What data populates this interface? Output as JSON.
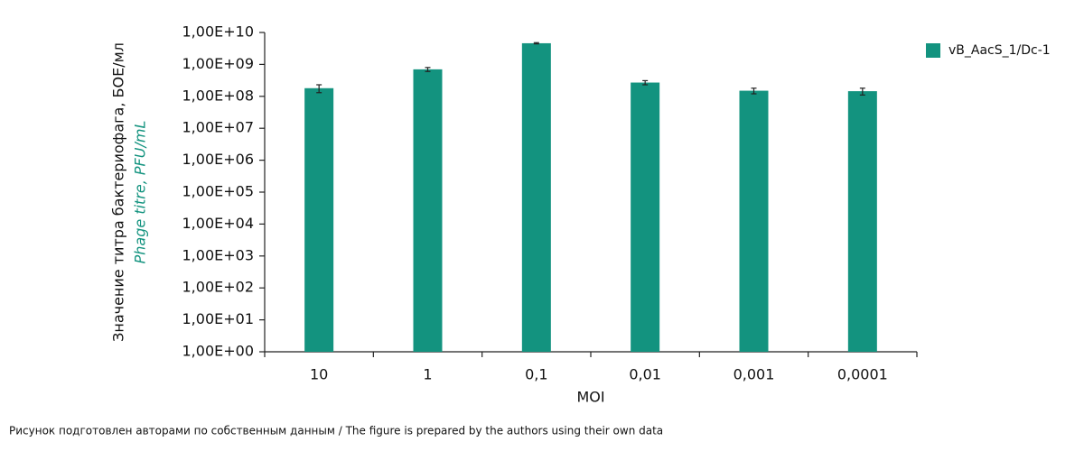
{
  "chart_data": {
    "type": "bar",
    "y_label": "Значение титра бактериофага, БОЕ/мл",
    "y_label_en": "Phage titre, PFU/mL",
    "x_label": "MOI",
    "caption": "Рисунок подготовлен авторами по собственным данным / The figure is prepared by the authors using their own data",
    "categories": [
      "10",
      "1",
      "0,1",
      "0,01",
      "0,001",
      "0,0001"
    ],
    "series": [
      {
        "name": "vB_AacS_1/Dc-1",
        "color": "#13937f",
        "values": [
          180000000,
          700000000,
          4600000000,
          270000000,
          150000000,
          145000000
        ],
        "errors": [
          50000000,
          100000000,
          200000000,
          40000000,
          30000000,
          35000000
        ]
      }
    ],
    "log_scale": true,
    "ylim": [
      1,
      10000000000
    ],
    "yticks": [
      {
        "value": 1,
        "label": "1,00E+00"
      },
      {
        "value": 10,
        "label": "1,00E+01"
      },
      {
        "value": 100,
        "label": "1,00E+02"
      },
      {
        "value": 1000,
        "label": "1,00E+03"
      },
      {
        "value": 10000,
        "label": "1,00E+04"
      },
      {
        "value": 100000,
        "label": "1,00E+05"
      },
      {
        "value": 1000000,
        "label": "1,00E+06"
      },
      {
        "value": 10000000,
        "label": "1,00E+07"
      },
      {
        "value": 100000000,
        "label": "1,00E+08"
      },
      {
        "value": 1000000000,
        "label": "1,00E+09"
      },
      {
        "value": 10000000000,
        "label": "1,00E+10"
      }
    ],
    "legend": "right"
  }
}
